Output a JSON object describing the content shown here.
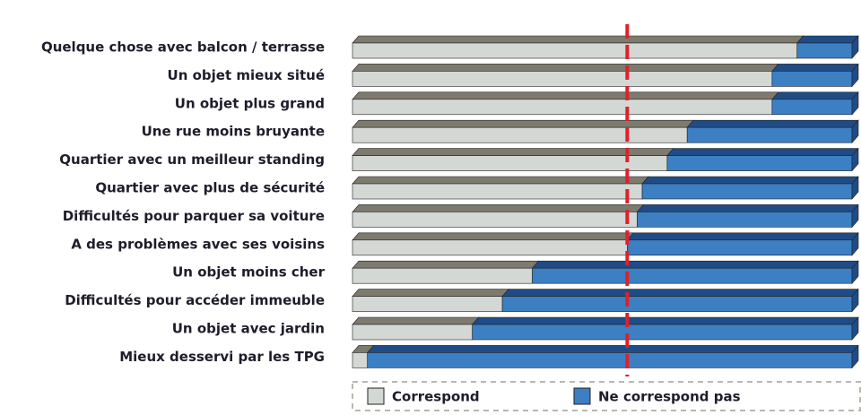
{
  "chart_data": {
    "type": "stacked-bar-3d",
    "categories": [
      "Quelque chose avec balcon / terrasse",
      "Un objet mieux situé",
      "Un objet plus grand",
      "Une rue moins bruyante",
      "Quartier avec un meilleur standing",
      "Quartier avec plus de sécurité",
      "Difficultés pour parquer sa voiture",
      "A des problèmes avec ses voisins",
      "Un objet moins cher",
      "Difficultés pour accéder immeuble",
      "Un objet avec jardin",
      "Mieux desservi par les TPG"
    ],
    "series": [
      {
        "name": "Correspond",
        "color": "#d3d8d5",
        "top_color": "#7e7a6e",
        "values": [
          89,
          84,
          84,
          67,
          63,
          58,
          57,
          55,
          36,
          30,
          24,
          3
        ]
      },
      {
        "name": "Ne correspond pas",
        "color": "#3c7fc2",
        "top_color": "#1f4c87",
        "values": [
          11,
          16,
          16,
          33,
          37,
          42,
          43,
          45,
          64,
          70,
          76,
          97
        ]
      }
    ],
    "xlim": [
      0,
      100
    ],
    "reference_line": 55,
    "reference_color": "#e0202a",
    "legend": "bottom"
  }
}
